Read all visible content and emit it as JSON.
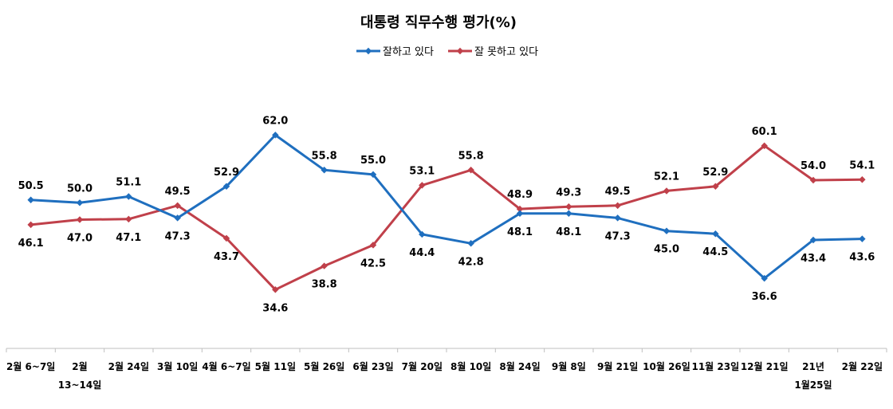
{
  "chart_data": {
    "type": "line",
    "title": "대통령 직무수행 평가(%)",
    "categories": [
      [
        "2월 6~7일"
      ],
      [
        "2월",
        "13~14일"
      ],
      [
        "2월 24일"
      ],
      [
        "3월 10일"
      ],
      [
        "4월 6~7일"
      ],
      [
        "5월 11일"
      ],
      [
        "5월 26일"
      ],
      [
        "6월 23일"
      ],
      [
        "7월 20일"
      ],
      [
        "8월 10일"
      ],
      [
        "8월 24일"
      ],
      [
        "9월 8일"
      ],
      [
        "9월 21일"
      ],
      [
        "10월 26일"
      ],
      [
        "11월 23일"
      ],
      [
        "12월 21일"
      ],
      [
        "21년",
        "1월25일"
      ],
      [
        "2월 22일"
      ]
    ],
    "series": [
      {
        "name": "잘하고 있다",
        "color": "#1F6FBF",
        "values": [
          50.5,
          50.0,
          51.1,
          47.3,
          52.9,
          62.0,
          55.8,
          55.0,
          44.4,
          42.8,
          48.1,
          48.1,
          47.3,
          45.0,
          44.5,
          36.6,
          43.4,
          43.6
        ],
        "labels": [
          "50.5",
          "50.0",
          "51.1",
          "47.3",
          "52.9",
          "62.0",
          "55.8",
          "55.0",
          "44.4",
          "42.8",
          "48.1",
          "48.1",
          "47.3",
          "45.0",
          "44.5",
          "36.6",
          "43.4",
          "43.6"
        ]
      },
      {
        "name": "잘 못하고 있다",
        "color": "#C0404A",
        "values": [
          46.1,
          47.0,
          47.1,
          49.5,
          43.7,
          34.6,
          38.8,
          42.5,
          53.1,
          55.8,
          48.9,
          49.3,
          49.5,
          52.1,
          52.9,
          60.1,
          54.0,
          54.1
        ],
        "labels": [
          "46.1",
          "47.0",
          "47.1",
          "49.5",
          "43.7",
          "34.6",
          "38.8",
          "42.5",
          "53.1",
          "55.8",
          "48.9",
          "49.3",
          "49.5",
          "52.1",
          "52.9",
          "60.1",
          "54.0",
          "54.1"
        ]
      }
    ],
    "ylim": [
      15,
      80
    ],
    "grid": false,
    "legend_position": "top-center",
    "axis_color": "#BFBFBF"
  }
}
